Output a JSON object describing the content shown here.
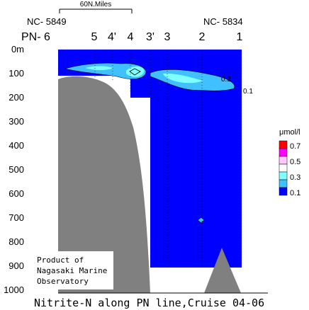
{
  "chart_data": {
    "type": "contour",
    "title": "Nitrite-N along PN line,Cruise 04-06",
    "scale_bar_label": "60N.Miles",
    "station_ids": {
      "left": "NC- 5849",
      "right": "NC- 5834"
    },
    "stations": [
      "PN- 6",
      "5",
      "4'",
      "4",
      "3'",
      "3",
      "2",
      "1"
    ],
    "y_axis": {
      "unit_label": "0m",
      "ticks": [
        "100",
        "200",
        "300",
        "400",
        "500",
        "600",
        "700",
        "800",
        "900",
        "1000"
      ],
      "range": [
        0,
        1000
      ]
    },
    "legend": {
      "unit": "μmol/l",
      "levels": [
        "0.7",
        "0.5",
        "0.3",
        "0.1"
      ],
      "colors": [
        "#ff0000",
        "#ff00ff",
        "#ffc8ff",
        "#ffffff",
        "#80ffff",
        "#40c0ff",
        "#0000ff"
      ]
    },
    "contour_labels": [
      "0.2",
      "0.1"
    ],
    "credit": [
      "Product of",
      "Nagasaki Marine",
      "Observatory"
    ]
  }
}
